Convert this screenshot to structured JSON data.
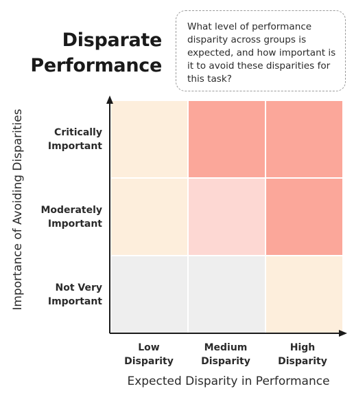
{
  "title": {
    "line1": "Disparate",
    "line2": "Performance"
  },
  "question": "What level of performance disparity across groups is expected, and how important is it to avoid these disparities for this task?",
  "axes": {
    "y_title": "Importance of Avoiding Disparities",
    "x_title": "Expected Disparity in Performance"
  },
  "rows": [
    {
      "line1": "Critically",
      "line2": "Important"
    },
    {
      "line1": "Moderately",
      "line2": "Important"
    },
    {
      "line1": "Not Very",
      "line2": "Important"
    }
  ],
  "columns": [
    {
      "line1": "Low",
      "line2": "Disparity"
    },
    {
      "line1": "Medium",
      "line2": "Disparity"
    },
    {
      "line1": "High",
      "line2": "Disparity"
    }
  ],
  "colors": {
    "grey": "#eeeeee",
    "cream": "#fdeedc",
    "light_pink": "#fdd8d3",
    "salmon": "#fba79a",
    "axis": "#1a1a1a",
    "cell_border": "#ffffff"
  },
  "cells": [
    [
      "cream",
      "salmon",
      "salmon"
    ],
    [
      "cream",
      "light_pink",
      "salmon"
    ],
    [
      "grey",
      "grey",
      "cream"
    ]
  ]
}
